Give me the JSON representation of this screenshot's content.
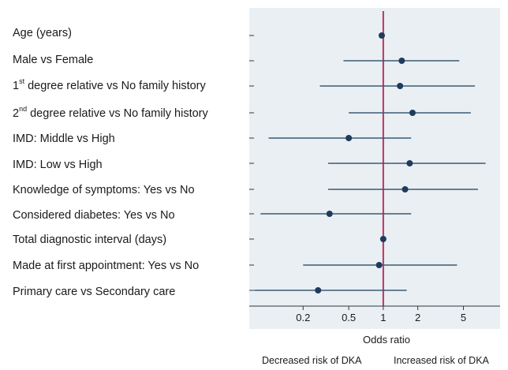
{
  "chart_data": {
    "type": "forest",
    "xlabel": "Odds ratio",
    "xscale": "log",
    "xlim": [
      0.07,
      9.5
    ],
    "xticks": [
      {
        "value": 0.2,
        "label": "0.2"
      },
      {
        "value": 0.5,
        "label": "0.5"
      },
      {
        "value": 1,
        "label": "1"
      },
      {
        "value": 2,
        "label": "2"
      },
      {
        "value": 5,
        "label": "5"
      }
    ],
    "reference_line": 1,
    "rows": [
      {
        "label": "Age (years)",
        "or": 0.97,
        "lo": 0.92,
        "hi": 1.03
      },
      {
        "label": "Male vs Female",
        "or": 1.45,
        "lo": 0.45,
        "hi": 4.6
      },
      {
        "label_main": "1",
        "label_sup": "st",
        "label_rest": " degree relative vs No family history",
        "or": 1.4,
        "lo": 0.28,
        "hi": 6.3
      },
      {
        "label_main": "2",
        "label_sup": "nd",
        "label_rest": " degree relative vs No family history",
        "or": 1.8,
        "lo": 0.5,
        "hi": 5.8
      },
      {
        "label": "IMD: Middle vs High",
        "or": 0.5,
        "lo": 0.1,
        "hi": 1.75
      },
      {
        "label": "IMD: Low vs High",
        "or": 1.7,
        "lo": 0.33,
        "hi": 7.8
      },
      {
        "label": "Knowledge of symptoms: Yes vs No",
        "or": 1.55,
        "lo": 0.33,
        "hi": 6.7
      },
      {
        "label": "Considered diabetes: Yes vs No",
        "or": 0.34,
        "lo": 0.085,
        "hi": 1.75
      },
      {
        "label": "Total diagnostic interval (days)",
        "or": 1.0,
        "lo": 0.99,
        "hi": 1.01
      },
      {
        "label": "Made at first appointment: Yes vs No",
        "or": 0.92,
        "lo": 0.2,
        "hi": 4.4
      },
      {
        "label": "Primary care vs Secondary care",
        "or": 0.27,
        "lo": 0.075,
        "hi": 1.6
      }
    ],
    "footer_left": "Decreased risk of DKA",
    "footer_right": "Increased risk of DKA",
    "colors": {
      "marker": "#1f3b5c",
      "ci_line": "#3a5a78",
      "reference": "#c0306a",
      "panel": "#e9eff2"
    }
  }
}
